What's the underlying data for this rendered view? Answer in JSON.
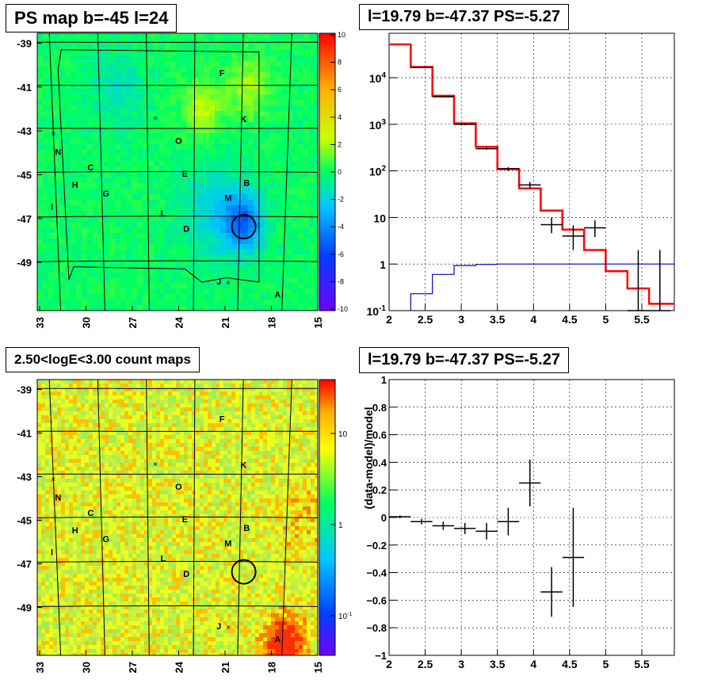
{
  "titles": {
    "ps_map": "PS map b=-45 l=24",
    "spectrum": "l=19.79 b=-47.37 PS=-5.27",
    "count_map": "2.50<logE<3.00 count maps",
    "residual": "l=19.79 b=-47.37 PS=-5.27"
  },
  "colors": {
    "data": "#000000",
    "model": "#ff0000",
    "background_model": "#0000cc",
    "grid": "#000000"
  },
  "chart_data": [
    {
      "type": "heatmap",
      "title": "PS map b=-45 l=24",
      "x_tick_labels": [
        "33",
        "30",
        "27",
        "24",
        "21",
        "18",
        "15"
      ],
      "y_tick_labels": [
        "-39",
        "-41",
        "-43",
        "-45",
        "-47",
        "-49"
      ],
      "xlim": [
        33,
        15
      ],
      "ylim": [
        -51,
        -38.5
      ],
      "colorbar": {
        "ticks": [
          "10",
          "8",
          "6",
          "4",
          "2",
          "0",
          "-2",
          "-4",
          "-6",
          "-8",
          "-10"
        ],
        "range": [
          -10,
          10
        ]
      },
      "background_level": 0,
      "regions": [
        {
          "label": "F",
          "l": 21.2,
          "b": -40.5
        },
        {
          "label": "K",
          "l": 19.8,
          "b": -42.6
        },
        {
          "label": "O",
          "l": 24.0,
          "b": -43.6
        },
        {
          "label": "N",
          "l": 31.8,
          "b": -44.1
        },
        {
          "label": "C",
          "l": 29.7,
          "b": -44.8
        },
        {
          "label": "E",
          "l": 23.6,
          "b": -45.1
        },
        {
          "label": "B",
          "l": 19.6,
          "b": -45.5
        },
        {
          "label": "H",
          "l": 30.7,
          "b": -45.6
        },
        {
          "label": "G",
          "l": 28.7,
          "b": -46.0
        },
        {
          "label": "M",
          "l": 20.8,
          "b": -46.2
        },
        {
          "label": "I",
          "l": 32.2,
          "b": -46.6
        },
        {
          "label": "L",
          "l": 25.0,
          "b": -46.9
        },
        {
          "label": "D",
          "l": 23.5,
          "b": -47.6
        },
        {
          "label": "J",
          "l": 21.4,
          "b": -50.0
        },
        {
          "label": "A",
          "l": 17.6,
          "b": -50.6
        }
      ],
      "markers": [
        {
          "symbol": "×",
          "l": 25.5,
          "b": -42.4
        },
        {
          "symbol": "×",
          "l": 32.1,
          "b": -43.1
        },
        {
          "symbol": "×",
          "l": 20.8,
          "b": -49.9
        }
      ],
      "source_circle": {
        "l": 19.79,
        "b": -47.37
      },
      "hotspots": [
        {
          "l": 19.79,
          "b": -47.2,
          "level": -4.5,
          "r": 1.2
        },
        {
          "l": 21.5,
          "b": -46.7,
          "level": -2,
          "r": 2.2
        },
        {
          "l": 22.5,
          "b": -42.0,
          "level": 2.5,
          "r": 1.2
        },
        {
          "l": 19.5,
          "b": -41.0,
          "level": 2,
          "r": 1.4
        },
        {
          "l": 28.0,
          "b": -41.0,
          "level": -1.2,
          "r": 1.8
        }
      ]
    },
    {
      "type": "line",
      "title": "l=19.79 b=-47.37 PS=-5.27",
      "xlabel": "",
      "ylabel": "",
      "xlim": [
        2,
        5.95
      ],
      "ylim": [
        0.1,
        90000
      ],
      "y_scale": "log",
      "grid": true,
      "x_ticks": [
        2,
        2.5,
        3,
        3.5,
        4,
        4.5,
        5,
        5.5
      ],
      "x_tick_labels": [
        "2",
        "2.5",
        "3",
        "3.5",
        "4",
        "4.5",
        "5",
        "5.5"
      ],
      "y_ticks": [
        0.1,
        1,
        10,
        100,
        1000,
        10000
      ],
      "y_tick_labels": [
        "10^-1",
        "1",
        "10",
        "10^2",
        "10^3",
        "10^4"
      ],
      "series": [
        {
          "name": "",
          "kind": "model_histogram",
          "color": "#ff0000",
          "bin_edges": [
            2.0,
            2.3,
            2.6,
            2.9,
            3.2,
            3.5,
            3.8,
            4.1,
            4.4,
            4.7,
            5.0,
            5.3,
            5.6,
            5.95
          ],
          "values": [
            52000,
            17000,
            4100,
            1050,
            330,
            110,
            42,
            14,
            5.5,
            2.0,
            0.7,
            0.3,
            0.14
          ]
        },
        {
          "name": "",
          "kind": "background_histogram",
          "color": "#0000cc",
          "bin_edges": [
            2.3,
            2.6,
            2.9,
            3.2,
            3.5,
            3.8,
            4.1,
            4.4,
            4.7,
            5.0,
            5.3,
            5.6,
            5.95
          ],
          "values": [
            0.23,
            0.6,
            0.93,
            0.98,
            1.0,
            1.0,
            1.0,
            1.0,
            1.0,
            1.0,
            1.0,
            1.0,
            1.02
          ]
        },
        {
          "name": "",
          "kind": "data_points",
          "color": "#000000",
          "x": [
            2.45,
            2.75,
            3.05,
            3.35,
            3.65,
            3.95,
            4.25,
            4.55,
            4.85,
            5.45,
            5.75
          ],
          "x_err": [
            0.15,
            0.15,
            0.15,
            0.15,
            0.15,
            0.15,
            0.15,
            0.15,
            0.15,
            0.15,
            0.15
          ],
          "y": [
            16500,
            3900,
            1000,
            300,
            110,
            50,
            7,
            4,
            6,
            0.1,
            0.1
          ],
          "y_lo": [
            16000,
            3750,
            960,
            283,
            100,
            43,
            4.6,
            2.0,
            3.8,
            0.1,
            0.1
          ],
          "y_hi": [
            17000,
            4050,
            1040,
            317,
            120,
            58,
            10,
            6.8,
            8.7,
            2.0,
            2.0
          ]
        }
      ]
    },
    {
      "type": "heatmap",
      "title": "2.50<logE<3.00 count maps",
      "x_tick_labels": [
        "33",
        "30",
        "27",
        "24",
        "21",
        "18",
        "15"
      ],
      "y_tick_labels": [
        "-39",
        "-41",
        "-43",
        "-45",
        "-47",
        "-49"
      ],
      "xlim": [
        33,
        15
      ],
      "ylim": [
        -51,
        -38.5
      ],
      "colorbar": {
        "ticks": [
          "10",
          "1",
          "10^-1"
        ],
        "scale": "log"
      },
      "regions": "same as PS map",
      "source_circle": {
        "l": 19.79,
        "b": -47.37
      },
      "hotspots": [
        {
          "l": 17.2,
          "b": -50.7,
          "level": "high"
        },
        {
          "l": 16.0,
          "b": -45.0,
          "level": "elevated"
        }
      ]
    },
    {
      "type": "scatter",
      "title": "l=19.79 b=-47.37 PS=-5.27",
      "xlabel": "",
      "ylabel": "(data-model)/model",
      "xlim": [
        2,
        5.95
      ],
      "ylim": [
        -1,
        1
      ],
      "grid": true,
      "x_ticks": [
        2,
        2.5,
        3,
        3.5,
        4,
        4.5,
        5,
        5.5
      ],
      "x_tick_labels": [
        "2",
        "2.5",
        "3",
        "3.5",
        "4",
        "4.5",
        "5",
        "5.5"
      ],
      "y_ticks": [
        -1,
        -0.8,
        -0.6,
        -0.4,
        -0.2,
        0,
        0.2,
        0.4,
        0.6,
        0.8,
        1
      ],
      "y_tick_labels": [
        "−1",
        "−0.8",
        "−0.6",
        "−0.4",
        "−0.2",
        "0",
        "0.2",
        "0.4",
        "0.6",
        "0.8",
        "1"
      ],
      "series": [
        {
          "name": "",
          "color": "#000000",
          "x": [
            2.15,
            2.45,
            2.75,
            3.05,
            3.35,
            3.65,
            3.95,
            4.25,
            4.55
          ],
          "x_err": [
            0.15,
            0.15,
            0.15,
            0.15,
            0.15,
            0.15,
            0.15,
            0.15,
            0.15
          ],
          "y": [
            0.005,
            -0.03,
            -0.06,
            -0.08,
            -0.1,
            -0.03,
            0.25,
            -0.54,
            -0.29
          ],
          "y_err": [
            0.01,
            0.02,
            0.03,
            0.04,
            0.06,
            0.1,
            0.17,
            0.18,
            0.36
          ]
        }
      ]
    }
  ]
}
